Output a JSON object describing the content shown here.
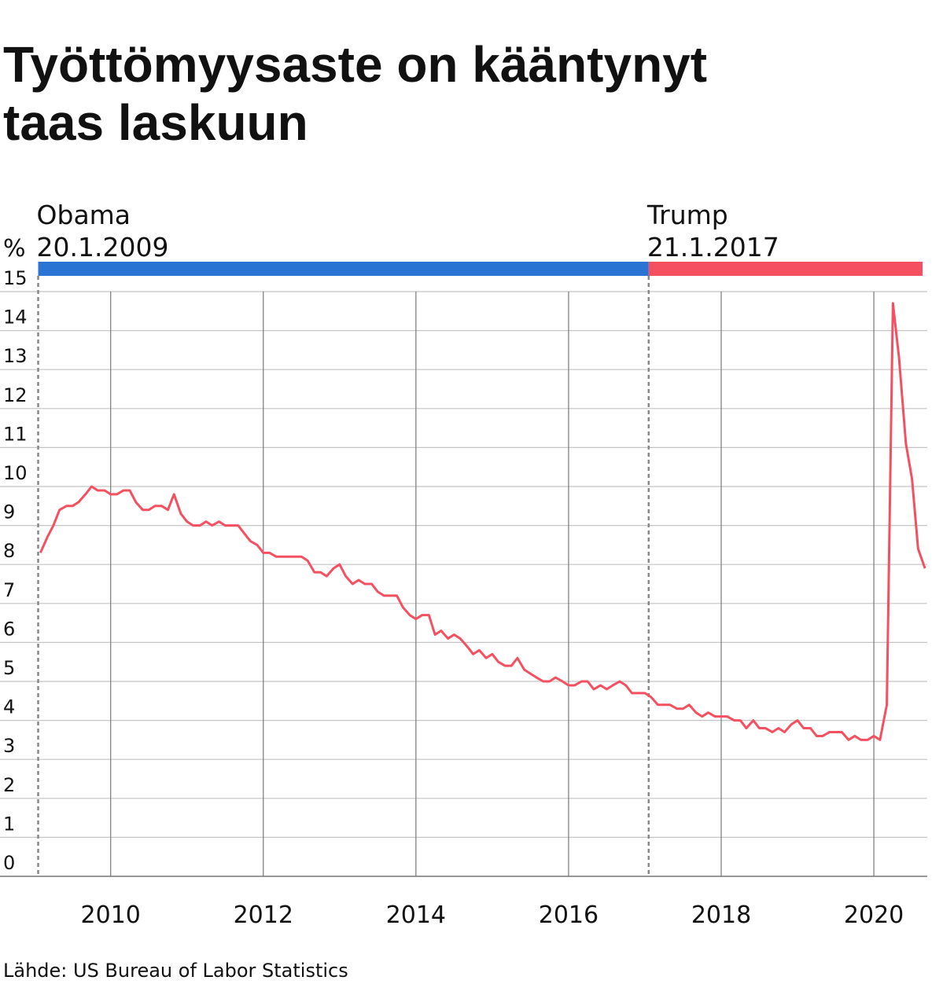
{
  "chart_data": {
    "type": "line",
    "title": "Työttömyysaste on kääntynyt taas laskuun",
    "y_label": "%",
    "source": "Lähde: US Bureau of Labor Statistics",
    "xlim": [
      2008.55,
      2020.7
    ],
    "ylim": [
      0,
      15
    ],
    "xticks": [
      2010,
      2012,
      2014,
      2016,
      2018,
      2020
    ],
    "yticks": [
      0,
      1,
      2,
      3,
      4,
      5,
      6,
      7,
      8,
      9,
      10,
      11,
      12,
      13,
      14,
      15
    ],
    "grid": true,
    "periods": [
      {
        "name": "Obama",
        "date": "20.1.2009",
        "start": 2009.05,
        "color": "#2a74d4"
      },
      {
        "name": "Trump",
        "date": "21.1.2017",
        "start": 2017.05,
        "color": "#f4505f"
      }
    ],
    "series": [
      {
        "color": "#f4505f",
        "x": [
          2009.08,
          2009.17,
          2009.25,
          2009.33,
          2009.42,
          2009.5,
          2009.58,
          2009.67,
          2009.75,
          2009.83,
          2009.92,
          2010.0,
          2010.08,
          2010.17,
          2010.25,
          2010.33,
          2010.42,
          2010.5,
          2010.58,
          2010.67,
          2010.75,
          2010.83,
          2010.92,
          2011.0,
          2011.08,
          2011.17,
          2011.25,
          2011.33,
          2011.42,
          2011.5,
          2011.58,
          2011.67,
          2011.75,
          2011.83,
          2011.92,
          2012.0,
          2012.08,
          2012.17,
          2012.25,
          2012.33,
          2012.42,
          2012.5,
          2012.58,
          2012.67,
          2012.75,
          2012.83,
          2012.92,
          2013.0,
          2013.08,
          2013.17,
          2013.25,
          2013.33,
          2013.42,
          2013.5,
          2013.58,
          2013.67,
          2013.75,
          2013.83,
          2013.92,
          2014.0,
          2014.08,
          2014.17,
          2014.25,
          2014.33,
          2014.42,
          2014.5,
          2014.58,
          2014.67,
          2014.75,
          2014.83,
          2014.92,
          2015.0,
          2015.08,
          2015.17,
          2015.25,
          2015.33,
          2015.42,
          2015.5,
          2015.58,
          2015.67,
          2015.75,
          2015.83,
          2015.92,
          2016.0,
          2016.08,
          2016.17,
          2016.25,
          2016.33,
          2016.42,
          2016.5,
          2016.58,
          2016.67,
          2016.75,
          2016.83,
          2016.92,
          2017.0,
          2017.08,
          2017.17,
          2017.25,
          2017.33,
          2017.42,
          2017.5,
          2017.58,
          2017.67,
          2017.75,
          2017.83,
          2017.92,
          2018.0,
          2018.08,
          2018.17,
          2018.25,
          2018.33,
          2018.42,
          2018.5,
          2018.58,
          2018.67,
          2018.75,
          2018.83,
          2018.92,
          2019.0,
          2019.08,
          2019.17,
          2019.25,
          2019.33,
          2019.42,
          2019.5,
          2019.58,
          2019.67,
          2019.75,
          2019.83,
          2019.92,
          2020.0,
          2020.08,
          2020.17,
          2020.25,
          2020.33,
          2020.42,
          2020.5,
          2020.58,
          2020.67
        ],
        "values": [
          8.3,
          8.7,
          9.0,
          9.4,
          9.5,
          9.5,
          9.6,
          9.8,
          10.0,
          9.9,
          9.9,
          9.8,
          9.8,
          9.9,
          9.9,
          9.6,
          9.4,
          9.4,
          9.5,
          9.5,
          9.4,
          9.8,
          9.3,
          9.1,
          9.0,
          9.0,
          9.1,
          9.0,
          9.1,
          9.0,
          9.0,
          9.0,
          8.8,
          8.6,
          8.5,
          8.3,
          8.3,
          8.2,
          8.2,
          8.2,
          8.2,
          8.2,
          8.1,
          7.8,
          7.8,
          7.7,
          7.9,
          8.0,
          7.7,
          7.5,
          7.6,
          7.5,
          7.5,
          7.3,
          7.2,
          7.2,
          7.2,
          6.9,
          6.7,
          6.6,
          6.7,
          6.7,
          6.2,
          6.3,
          6.1,
          6.2,
          6.1,
          5.9,
          5.7,
          5.8,
          5.6,
          5.7,
          5.5,
          5.4,
          5.4,
          5.6,
          5.3,
          5.2,
          5.1,
          5.0,
          5.0,
          5.1,
          5.0,
          4.9,
          4.9,
          5.0,
          5.0,
          4.8,
          4.9,
          4.8,
          4.9,
          5.0,
          4.9,
          4.7,
          4.7,
          4.7,
          4.6,
          4.4,
          4.4,
          4.4,
          4.3,
          4.3,
          4.4,
          4.2,
          4.1,
          4.2,
          4.1,
          4.1,
          4.1,
          4.0,
          4.0,
          3.8,
          4.0,
          3.8,
          3.8,
          3.7,
          3.8,
          3.7,
          3.9,
          4.0,
          3.8,
          3.8,
          3.6,
          3.6,
          3.7,
          3.7,
          3.7,
          3.5,
          3.6,
          3.5,
          3.5,
          3.6,
          3.5,
          4.4,
          14.7,
          13.3,
          11.1,
          10.2,
          8.4,
          7.9
        ]
      }
    ]
  }
}
